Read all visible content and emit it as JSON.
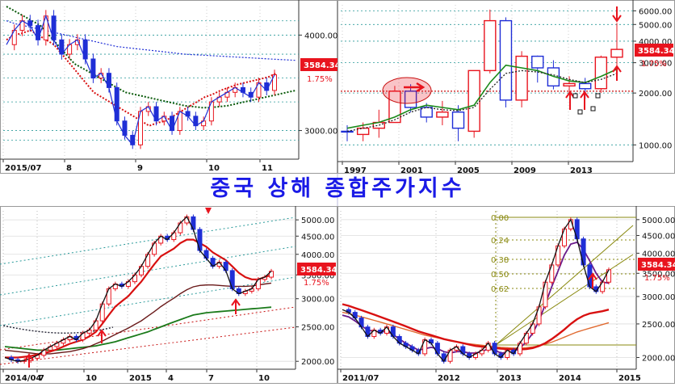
{
  "title": "중국 상해 종합주가지수",
  "colors": {
    "up": "#e8141e",
    "down": "#1f2ed6",
    "box": "#e8141e",
    "grid": "#2a9a9a"
  },
  "chart_data": [
    {
      "type": "line",
      "name": "daily-2015-07-11",
      "x_ticks": [
        "2015/07",
        "8",
        "9",
        "10",
        "11"
      ],
      "y_ticks": [
        3000,
        4000
      ],
      "ylim": [
        2700,
        4300
      ],
      "price_label": "3584.34",
      "pct_label": "1.75%",
      "price": [
        3900,
        4050,
        4150,
        4100,
        3950,
        4200,
        3950,
        3800,
        3900,
        3950,
        3750,
        3550,
        3600,
        3450,
        3100,
        2950,
        2850,
        3200,
        3250,
        3100,
        3150,
        3000,
        3200,
        3150,
        3050,
        3100,
        3300,
        3350,
        3400,
        3450,
        3400,
        3350,
        3500,
        3420,
        3584
      ],
      "ma_fast": [
        3950,
        4000,
        4020,
        4050,
        4000,
        3950,
        3900,
        3800,
        3700,
        3600,
        3500,
        3400,
        3350,
        3300,
        3250,
        3200,
        3150,
        3100,
        3050,
        3080,
        3100,
        3150,
        3200,
        3250,
        3300,
        3350,
        3380,
        3420,
        3450,
        3480,
        3500,
        3520,
        3540,
        3560,
        3600
      ],
      "ma_slow": [
        4300,
        4250,
        4200,
        4150,
        4100,
        4000,
        3900,
        3800,
        3700,
        3650,
        3600,
        3550,
        3500,
        3450,
        3400,
        3380,
        3360,
        3340,
        3320,
        3300,
        3280,
        3260,
        3250,
        3240,
        3240,
        3250,
        3260,
        3280,
        3300,
        3320,
        3340,
        3360,
        3380,
        3400,
        3420
      ],
      "ma_long": [
        4150,
        4120,
        4100,
        4080,
        4060,
        4040,
        4020,
        4000,
        3980,
        3960,
        3940,
        3920,
        3900,
        3880,
        3870,
        3860,
        3850,
        3840,
        3830,
        3820,
        3810,
        3800,
        3795,
        3790,
        3785,
        3780,
        3775,
        3770,
        3765,
        3760,
        3755,
        3750,
        3745,
        3740,
        3735
      ]
    },
    {
      "type": "bar",
      "name": "yearly-1997-2015",
      "x_ticks": [
        "1997",
        "2001",
        "2005",
        "2009",
        "2013"
      ],
      "y_ticks": [
        1000,
        2000,
        3000,
        4000,
        5000,
        6000
      ],
      "ylim": [
        800,
        6500
      ],
      "price_label": "3584.34",
      "pct_label": "1.75%",
      "candles": [
        {
          "o": 1200,
          "c": 1190,
          "h": 1300,
          "l": 1050
        },
        {
          "o": 1150,
          "c": 1250,
          "h": 1350,
          "l": 1050
        },
        {
          "o": 1250,
          "c": 1350,
          "h": 1600,
          "l": 1100
        },
        {
          "o": 1350,
          "c": 2050,
          "h": 2200,
          "l": 1350
        },
        {
          "o": 2050,
          "c": 1650,
          "h": 2250,
          "l": 1550
        },
        {
          "o": 1650,
          "c": 1450,
          "h": 1750,
          "l": 1350
        },
        {
          "o": 1450,
          "c": 1550,
          "h": 1800,
          "l": 1300
        },
        {
          "o": 1550,
          "c": 1250,
          "h": 1700,
          "l": 1050
        },
        {
          "o": 1200,
          "c": 2700,
          "h": 2700,
          "l": 1100
        },
        {
          "o": 2700,
          "c": 5260,
          "h": 6100,
          "l": 2600
        },
        {
          "o": 5260,
          "c": 1820,
          "h": 5500,
          "l": 1650
        },
        {
          "o": 1820,
          "c": 3270,
          "h": 3500,
          "l": 1650
        },
        {
          "o": 3270,
          "c": 2800,
          "h": 3300,
          "l": 2300
        },
        {
          "o": 2800,
          "c": 2200,
          "h": 3100,
          "l": 2100
        },
        {
          "o": 2200,
          "c": 2270,
          "h": 2500,
          "l": 1950
        },
        {
          "o": 2270,
          "c": 2120,
          "h": 2450,
          "l": 1850
        },
        {
          "o": 2120,
          "c": 3230,
          "h": 3300,
          "l": 2000
        },
        {
          "o": 3230,
          "c": 3584,
          "h": 5100,
          "l": 2900
        }
      ],
      "ma": [
        1250,
        1300,
        1350,
        1450,
        1600,
        1700,
        1650,
        1600,
        1700,
        2300,
        2900,
        2800,
        2700,
        2500,
        2350,
        2300,
        2500,
        2750
      ],
      "ma2": [
        1200,
        1250,
        1300,
        1400,
        1550,
        1650,
        1600,
        1580,
        1650,
        2100,
        2600,
        2700,
        2650,
        2550,
        2400,
        2300,
        2400,
        2600
      ]
    },
    {
      "type": "line",
      "name": "weekly-2014-04-2015-10",
      "x_ticks": [
        "2014/04",
        "7",
        "10",
        "2015",
        "4",
        "7",
        "10"
      ],
      "y_ticks": [
        2000,
        2500,
        3000,
        3500,
        4000,
        4500,
        5000
      ],
      "ylim": [
        1900,
        5300
      ],
      "price_label": "3584.34",
      "pct_label": "1.75%",
      "price": [
        2050,
        2020,
        2000,
        2010,
        2040,
        2080,
        2150,
        2200,
        2250,
        2300,
        2350,
        2300,
        2400,
        2450,
        2600,
        2900,
        3200,
        3300,
        3250,
        3350,
        3500,
        3700,
        4000,
        4300,
        4500,
        4400,
        4600,
        4900,
        5100,
        4700,
        4100,
        3900,
        3700,
        3800,
        3600,
        3200,
        3100,
        3150,
        3200,
        3400,
        3450,
        3584
      ],
      "ma_red": [
        2050,
        2050,
        2050,
        2060,
        2070,
        2090,
        2110,
        2130,
        2160,
        2200,
        2240,
        2270,
        2300,
        2350,
        2420,
        2550,
        2700,
        2850,
        2950,
        3050,
        3200,
        3350,
        3550,
        3750,
        3950,
        4050,
        4150,
        4300,
        4400,
        4400,
        4300,
        4200,
        4050,
        3950,
        3850,
        3700,
        3550,
        3450,
        3400,
        3400,
        3450,
        3500
      ],
      "ma_dark": [
        2150,
        2140,
        2130,
        2120,
        2110,
        2100,
        2100,
        2100,
        2110,
        2120,
        2130,
        2150,
        2170,
        2200,
        2240,
        2280,
        2330,
        2380,
        2430,
        2480,
        2540,
        2600,
        2680,
        2760,
        2850,
        2930,
        3010,
        3100,
        3180,
        3240,
        3270,
        3280,
        3280,
        3270,
        3260,
        3250,
        3250,
        3250,
        3260,
        3280,
        3300,
        3320
      ],
      "ma_green": [
        2200,
        2190,
        2180,
        2170,
        2160,
        2150,
        2150,
        2150,
        2150,
        2160,
        2170,
        2180,
        2190,
        2200,
        2210,
        2230,
        2250,
        2270,
        2300,
        2330,
        2360,
        2390,
        2420,
        2460,
        2500,
        2540,
        2580,
        2620,
        2660,
        2700,
        2720,
        2740,
        2750,
        2760,
        2770,
        2780,
        2790,
        2800,
        2810,
        2820,
        2830,
        2840
      ]
    },
    {
      "type": "line",
      "name": "monthly-2011-2015",
      "x_ticks": [
        "2011/07",
        "2012",
        "2013",
        "2014",
        "2015"
      ],
      "y_ticks": [
        2000,
        2500,
        3000,
        3500,
        4000,
        4500,
        5000
      ],
      "ylim": [
        1850,
        5300
      ],
      "fib_levels": [
        "0.00",
        "0.24",
        "0.38",
        "0.50",
        "0.62"
      ],
      "price_label": "3584.34",
      "pct_label": "1.75%",
      "price": [
        2750,
        2700,
        2600,
        2450,
        2300,
        2400,
        2350,
        2450,
        2300,
        2200,
        2150,
        2100,
        2050,
        2250,
        2200,
        2050,
        1950,
        2100,
        2150,
        2050,
        2000,
        2050,
        2100,
        2200,
        2050,
        2000,
        2100,
        2050,
        2200,
        2350,
        2500,
        2800,
        3300,
        3700,
        4200,
        4700,
        5000,
        4400,
        3700,
        3200,
        3100,
        3300,
        3584
      ],
      "ma_red": [
        2850,
        2820,
        2780,
        2740,
        2700,
        2660,
        2620,
        2580,
        2540,
        2500,
        2460,
        2420,
        2380,
        2350,
        2320,
        2290,
        2260,
        2240,
        2220,
        2200,
        2180,
        2160,
        2150,
        2140,
        2130,
        2120,
        2115,
        2110,
        2110,
        2115,
        2130,
        2160,
        2200,
        2260,
        2330,
        2410,
        2500,
        2580,
        2640,
        2680,
        2700,
        2720,
        2750
      ],
      "ma_orange": [
        2700,
        2680,
        2650,
        2620,
        2590,
        2560,
        2530,
        2500,
        2470,
        2440,
        2410,
        2380,
        2350,
        2320,
        2300,
        2280,
        2260,
        2240,
        2220,
        2200,
        2190,
        2180,
        2170,
        2160,
        2150,
        2140,
        2135,
        2130,
        2130,
        2135,
        2145,
        2160,
        2185,
        2215,
        2250,
        2290,
        2330,
        2370,
        2400,
        2430,
        2460,
        2490,
        2520
      ],
      "ma_purple": [
        2650,
        2620,
        2550,
        2470,
        2400,
        2380,
        2370,
        2380,
        2330,
        2260,
        2200,
        2150,
        2100,
        2120,
        2140,
        2120,
        2080,
        2060,
        2080,
        2080,
        2060,
        2060,
        2080,
        2120,
        2100,
        2060,
        2070,
        2080,
        2130,
        2220,
        2350,
        2550,
        2850,
        3200,
        3550,
        3950,
        4250,
        4300,
        4100,
        3800,
        3500,
        3300,
        3280
      ]
    }
  ]
}
